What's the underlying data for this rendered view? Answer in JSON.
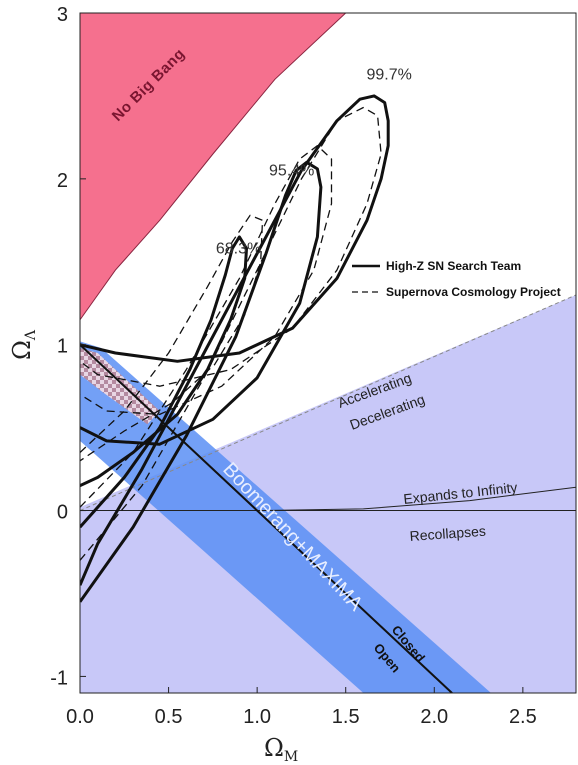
{
  "chart_data": {
    "type": "contour",
    "title": "",
    "xlabel": "Ω",
    "xlabel_sub": "M",
    "ylabel": "Ω",
    "ylabel_sub": "Λ",
    "xlim": [
      0,
      2.8
    ],
    "ylim": [
      -1.1,
      3.0
    ],
    "x_ticks": [
      0.0,
      0.5,
      1.0,
      1.5,
      2.0,
      2.5
    ],
    "x_tick_labels": [
      "0.0",
      "0.5",
      "1.0",
      "1.5",
      "2.0",
      "2.5"
    ],
    "y_ticks": [
      -1,
      0,
      1,
      2,
      3
    ],
    "y_tick_labels": [
      "-1",
      "0",
      "1",
      "2",
      "3"
    ],
    "confidence_labels": [
      {
        "text": "68.3%",
        "x": 0.88,
        "y": 1.55
      },
      {
        "text": "95.4%",
        "x": 1.18,
        "y": 2.02
      },
      {
        "text": "99.7%",
        "x": 1.73,
        "y": 2.6
      }
    ],
    "legend": {
      "placement": "right",
      "entries": [
        {
          "label": "High-Z SN Search Team",
          "style": "solid"
        },
        {
          "label": "Supernova Cosmology Project",
          "style": "dashed"
        }
      ]
    },
    "regions": [
      {
        "label": "No Big Bang",
        "color": "#f5708e"
      },
      {
        "label": "Boomerang+MAXIMA",
        "color": "#5a8ff5"
      },
      {
        "label": "Decelerating",
        "color": "#c8c8f8"
      }
    ],
    "annotations": [
      {
        "text": "Accelerating"
      },
      {
        "text": "Decelerating"
      },
      {
        "text": "Expands to Infinity"
      },
      {
        "text": "Recollapses"
      },
      {
        "text": "Closed"
      },
      {
        "text": "Open"
      }
    ],
    "series": [
      {
        "name": "High-Z SN Search Team",
        "style": "solid",
        "contours": [
          {
            "level": "68.3%",
            "points": [
              [
                0.0,
                -0.1
              ],
              [
                0.25,
                0.2
              ],
              [
                0.45,
                0.5
              ],
              [
                0.62,
                0.85
              ],
              [
                0.74,
                1.15
              ],
              [
                0.82,
                1.42
              ],
              [
                0.86,
                1.58
              ],
              [
                0.9,
                1.65
              ],
              [
                0.94,
                1.58
              ],
              [
                0.93,
                1.4
              ],
              [
                0.85,
                1.15
              ],
              [
                0.72,
                0.85
              ],
              [
                0.55,
                0.58
              ],
              [
                0.3,
                0.35
              ],
              [
                0.1,
                0.2
              ],
              [
                0.0,
                0.15
              ]
            ]
          },
          {
            "level": "95.4%",
            "points": [
              [
                0.0,
                -0.55
              ],
              [
                0.3,
                -0.1
              ],
              [
                0.6,
                0.45
              ],
              [
                0.88,
                1.05
              ],
              [
                1.05,
                1.55
              ],
              [
                1.16,
                1.9
              ],
              [
                1.22,
                2.05
              ],
              [
                1.28,
                2.1
              ],
              [
                1.34,
                2.06
              ],
              [
                1.36,
                1.95
              ],
              [
                1.34,
                1.65
              ],
              [
                1.24,
                1.25
              ],
              [
                1.0,
                0.8
              ],
              [
                0.75,
                0.55
              ],
              [
                0.45,
                0.4
              ],
              [
                0.15,
                0.42
              ],
              [
                0.0,
                0.5
              ]
            ]
          },
          {
            "level": "99.7%",
            "points": [
              [
                0.0,
                -0.45
              ],
              [
                0.1,
                -0.2
              ],
              [
                0.35,
                0.25
              ],
              [
                0.7,
                0.95
              ],
              [
                1.0,
                1.55
              ],
              [
                1.25,
                2.05
              ],
              [
                1.45,
                2.35
              ],
              [
                1.58,
                2.48
              ],
              [
                1.66,
                2.5
              ],
              [
                1.72,
                2.46
              ],
              [
                1.74,
                2.35
              ],
              [
                1.74,
                2.2
              ],
              [
                1.7,
                2.0
              ],
              [
                1.62,
                1.75
              ],
              [
                1.45,
                1.4
              ],
              [
                1.2,
                1.1
              ],
              [
                0.9,
                0.95
              ],
              [
                0.55,
                0.9
              ],
              [
                0.2,
                0.95
              ],
              [
                0.0,
                1.0
              ]
            ]
          }
        ]
      },
      {
        "name": "Supernova Cosmology Project",
        "style": "dashed",
        "contours": [
          {
            "level": "68.3%",
            "points": [
              [
                0.0,
                0.35
              ],
              [
                0.25,
                0.6
              ],
              [
                0.5,
                0.95
              ],
              [
                0.72,
                1.35
              ],
              [
                0.86,
                1.62
              ],
              [
                0.96,
                1.78
              ],
              [
                1.03,
                1.75
              ],
              [
                1.02,
                1.5
              ],
              [
                0.93,
                1.18
              ],
              [
                0.76,
                0.88
              ],
              [
                0.52,
                0.65
              ],
              [
                0.25,
                0.48
              ],
              [
                0.0,
                0.3
              ]
            ]
          },
          {
            "level": "95.4%",
            "points": [
              [
                0.0,
                0.02
              ],
              [
                0.3,
                0.35
              ],
              [
                0.6,
                0.85
              ],
              [
                0.9,
                1.4
              ],
              [
                1.1,
                1.85
              ],
              [
                1.24,
                2.12
              ],
              [
                1.34,
                2.2
              ],
              [
                1.42,
                2.12
              ],
              [
                1.42,
                1.85
              ],
              [
                1.32,
                1.45
              ],
              [
                1.1,
                1.05
              ],
              [
                0.8,
                0.75
              ],
              [
                0.45,
                0.58
              ],
              [
                0.15,
                0.6
              ],
              [
                0.0,
                0.7
              ]
            ]
          },
          {
            "level": "99.7%",
            "points": [
              [
                0.0,
                -0.3
              ],
              [
                0.35,
                0.15
              ],
              [
                0.7,
                0.8
              ],
              [
                1.0,
                1.45
              ],
              [
                1.25,
                2.0
              ],
              [
                1.45,
                2.35
              ],
              [
                1.6,
                2.43
              ],
              [
                1.68,
                2.38
              ],
              [
                1.7,
                2.15
              ],
              [
                1.62,
                1.85
              ],
              [
                1.45,
                1.45
              ],
              [
                1.2,
                1.1
              ],
              [
                0.85,
                0.85
              ],
              [
                0.45,
                0.75
              ],
              [
                0.1,
                0.82
              ],
              [
                0.0,
                0.9
              ]
            ]
          }
        ]
      }
    ]
  }
}
